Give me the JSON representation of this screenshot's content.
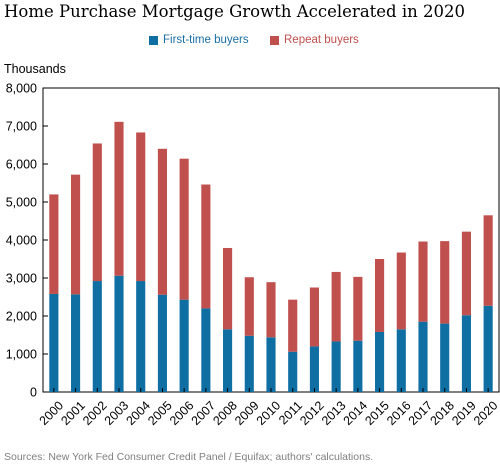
{
  "chart_data": {
    "type": "bar",
    "stacked": true,
    "title": "Home Purchase Mortgage Growth Accelerated in 2020",
    "ylabel": "Thousands",
    "ylim": [
      0,
      8000
    ],
    "yticks": [
      0,
      1000,
      2000,
      3000,
      4000,
      5000,
      6000,
      7000,
      8000
    ],
    "ytick_labels": [
      "0",
      "1,000",
      "2,000",
      "3,000",
      "4,000",
      "5,000",
      "6,000",
      "7,000",
      "8,000"
    ],
    "grid": false,
    "legend_position": "top-center",
    "categories": [
      "2000",
      "2001",
      "2002",
      "2003",
      "2004",
      "2005",
      "2006",
      "2007",
      "2008",
      "2009",
      "2010",
      "2011",
      "2012",
      "2013",
      "2014",
      "2015",
      "2016",
      "2017",
      "2018",
      "2019",
      "2020"
    ],
    "series": [
      {
        "name": "First-time buyers",
        "color": "#0f6fa3",
        "values": [
          2580,
          2570,
          2920,
          3060,
          2920,
          2560,
          2430,
          2200,
          1650,
          1480,
          1440,
          1060,
          1200,
          1330,
          1350,
          1580,
          1650,
          1850,
          1800,
          2020,
          2270
        ]
      },
      {
        "name": "Repeat buyers",
        "color": "#c0504d",
        "values": [
          2620,
          3150,
          3620,
          4050,
          3910,
          3840,
          3710,
          3260,
          2140,
          1540,
          1450,
          1370,
          1550,
          1830,
          1680,
          1920,
          2020,
          2110,
          2170,
          2200,
          2380
        ]
      }
    ],
    "source": "Sources: New York Fed Consumer Credit Panel / Equifax; authors' calculations."
  }
}
